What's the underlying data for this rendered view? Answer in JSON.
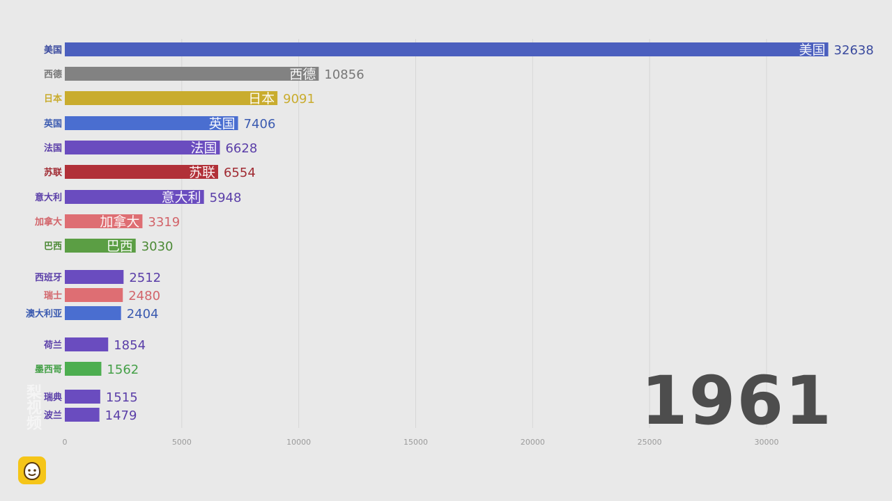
{
  "chart_data": {
    "type": "bar",
    "orientation": "horizontal",
    "title": "",
    "xlabel": "",
    "ylabel": "",
    "xlim": [
      0,
      34000
    ],
    "xticks": [
      0,
      5000,
      10000,
      15000,
      20000,
      25000,
      30000
    ],
    "xtick_labels": [
      "0",
      "5000",
      "10000",
      "15000",
      "20000",
      "25000",
      "30000"
    ],
    "categories": [
      "美国",
      "西德",
      "日本",
      "英国",
      "法国",
      "苏联",
      "意大利",
      "加拿大",
      "巴西",
      "西班牙",
      "瑞士",
      "澳大利亚",
      "荷兰",
      "墨西哥",
      "瑞典",
      "波兰"
    ],
    "values": [
      32638,
      10856,
      9091,
      7406,
      6628,
      6554,
      5948,
      3319,
      3030,
      2512,
      2480,
      2404,
      1854,
      1562,
      1515,
      1479
    ],
    "colors": [
      "#4b5fbe",
      "#828282",
      "#c9ac2e",
      "#4a6ed0",
      "#6a4cbf",
      "#b13038",
      "#6a4cbf",
      "#de6e73",
      "#5b9e44",
      "#6a4cbf",
      "#de6e73",
      "#4a6ed0",
      "#6a4cbf",
      "#4dae50",
      "#6a4cbf",
      "#6a4cbf"
    ],
    "label_colors": [
      "#3a4a9e",
      "#777777",
      "#c9ac2e",
      "#3a5ab0",
      "#5a3ea8",
      "#a02a32",
      "#5a3ea8",
      "#d2646a",
      "#4c8a36",
      "#5a3ea8",
      "#d2646a",
      "#3a5ab0",
      "#5a3ea8",
      "#45a048",
      "#5a3ea8",
      "#5a3ea8"
    ],
    "show_inner_label": [
      true,
      true,
      true,
      true,
      true,
      true,
      true,
      true,
      true,
      false,
      false,
      false,
      false,
      false,
      false,
      false
    ],
    "grid": true,
    "year": "1961"
  },
  "watermark_text": "梨视频",
  "logo_name": "pear-video-logo"
}
